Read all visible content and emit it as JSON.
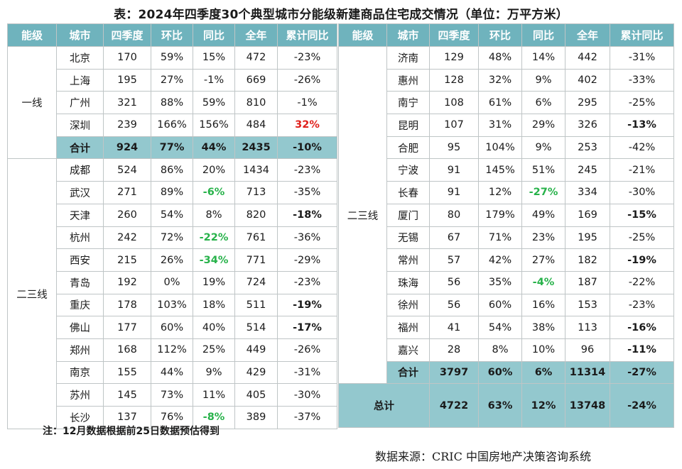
{
  "title": "表：2024年四季度30个典型城市分能级新建商品住宅成交情况（单位：万平方米）",
  "headers": [
    "能级",
    "城市",
    "四季度",
    "环比",
    "同比",
    "全年",
    "累计同比"
  ],
  "colors": {
    "header_bg": "#6fb3bd",
    "sum_bg": "#93c8ce",
    "negative_green": "#27b24a",
    "positive_red": "#e0201b"
  },
  "left": {
    "tier1": {
      "label": "一线",
      "rows": [
        {
          "city": "北京",
          "q4": "170",
          "qoq": "59%",
          "yoy": "15%",
          "year": "472",
          "ytd": "-23%"
        },
        {
          "city": "上海",
          "q4": "195",
          "qoq": "27%",
          "yoy": "-1%",
          "year": "669",
          "ytd": "-26%"
        },
        {
          "city": "广州",
          "q4": "321",
          "qoq": "88%",
          "yoy": "59%",
          "year": "810",
          "ytd": "-1%"
        },
        {
          "city": "深圳",
          "q4": "239",
          "qoq": "166%",
          "yoy": "156%",
          "year": "484",
          "ytd": "32%"
        }
      ],
      "subtotal": {
        "label": "合计",
        "q4": "924",
        "qoq": "77%",
        "yoy": "44%",
        "year": "2435",
        "ytd": "-10%"
      }
    },
    "tier23": {
      "label": "二三线",
      "rows": [
        {
          "city": "成都",
          "q4": "524",
          "qoq": "86%",
          "yoy": "20%",
          "year": "1434",
          "ytd": "-23%"
        },
        {
          "city": "武汉",
          "q4": "271",
          "qoq": "89%",
          "yoy": "-6%",
          "year": "713",
          "ytd": "-35%"
        },
        {
          "city": "天津",
          "q4": "260",
          "qoq": "54%",
          "yoy": "8%",
          "year": "820",
          "ytd": "-18%"
        },
        {
          "city": "杭州",
          "q4": "242",
          "qoq": "72%",
          "yoy": "-22%",
          "year": "761",
          "ytd": "-36%"
        },
        {
          "city": "西安",
          "q4": "215",
          "qoq": "26%",
          "yoy": "-34%",
          "year": "771",
          "ytd": "-29%"
        },
        {
          "city": "青岛",
          "q4": "192",
          "qoq": "0%",
          "yoy": "19%",
          "year": "724",
          "ytd": "-23%"
        },
        {
          "city": "重庆",
          "q4": "178",
          "qoq": "103%",
          "yoy": "18%",
          "year": "511",
          "ytd": "-19%"
        },
        {
          "city": "佛山",
          "q4": "177",
          "qoq": "60%",
          "yoy": "40%",
          "year": "514",
          "ytd": "-17%"
        },
        {
          "city": "郑州",
          "q4": "168",
          "qoq": "112%",
          "yoy": "25%",
          "year": "449",
          "ytd": "-26%"
        },
        {
          "city": "南京",
          "q4": "155",
          "qoq": "44%",
          "yoy": "9%",
          "year": "429",
          "ytd": "-31%"
        },
        {
          "city": "苏州",
          "q4": "145",
          "qoq": "73%",
          "yoy": "11%",
          "year": "405",
          "ytd": "-30%"
        },
        {
          "city": "长沙",
          "q4": "137",
          "qoq": "76%",
          "yoy": "-8%",
          "year": "389",
          "ytd": "-37%"
        }
      ]
    }
  },
  "right": {
    "tier23": {
      "label": "二三线",
      "rows": [
        {
          "city": "济南",
          "q4": "129",
          "qoq": "48%",
          "yoy": "14%",
          "year": "442",
          "ytd": "-31%"
        },
        {
          "city": "惠州",
          "q4": "128",
          "qoq": "32%",
          "yoy": "9%",
          "year": "402",
          "ytd": "-33%"
        },
        {
          "city": "南宁",
          "q4": "108",
          "qoq": "61%",
          "yoy": "6%",
          "year": "295",
          "ytd": "-25%"
        },
        {
          "city": "昆明",
          "q4": "107",
          "qoq": "31%",
          "yoy": "29%",
          "year": "326",
          "ytd": "-13%"
        },
        {
          "city": "合肥",
          "q4": "95",
          "qoq": "104%",
          "yoy": "9%",
          "year": "253",
          "ytd": "-42%"
        },
        {
          "city": "宁波",
          "q4": "91",
          "qoq": "145%",
          "yoy": "51%",
          "year": "245",
          "ytd": "-21%"
        },
        {
          "city": "长春",
          "q4": "91",
          "qoq": "12%",
          "yoy": "-27%",
          "year": "334",
          "ytd": "-30%"
        },
        {
          "city": "厦门",
          "q4": "80",
          "qoq": "179%",
          "yoy": "49%",
          "year": "169",
          "ytd": "-15%"
        },
        {
          "city": "无锡",
          "q4": "67",
          "qoq": "71%",
          "yoy": "23%",
          "year": "195",
          "ytd": "-25%"
        },
        {
          "city": "常州",
          "q4": "57",
          "qoq": "42%",
          "yoy": "27%",
          "year": "182",
          "ytd": "-19%"
        },
        {
          "city": "珠海",
          "q4": "56",
          "qoq": "35%",
          "yoy": "-4%",
          "year": "187",
          "ytd": "-22%"
        },
        {
          "city": "徐州",
          "q4": "56",
          "qoq": "60%",
          "yoy": "16%",
          "year": "153",
          "ytd": "-23%"
        },
        {
          "city": "福州",
          "q4": "41",
          "qoq": "54%",
          "yoy": "38%",
          "year": "113",
          "ytd": "-16%"
        },
        {
          "city": "嘉兴",
          "q4": "28",
          "qoq": "8%",
          "yoy": "10%",
          "year": "96",
          "ytd": "-11%"
        }
      ],
      "subtotal": {
        "label": "合计",
        "q4": "3797",
        "qoq": "60%",
        "yoy": "6%",
        "year": "11314",
        "ytd": "-27%"
      }
    },
    "total": {
      "label": "总计",
      "q4": "4722",
      "qoq": "63%",
      "yoy": "12%",
      "year": "13748",
      "ytd": "-24%"
    }
  },
  "note": "注：12月数据根据前25日数据预估得到",
  "source": "数据来源：CRIC 中国房地产决策咨询系统"
}
